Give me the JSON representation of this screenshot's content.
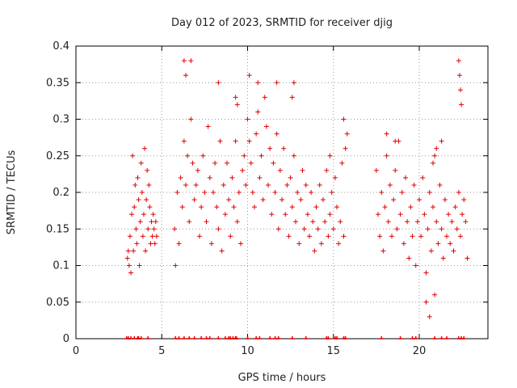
{
  "chart_data": {
    "type": "scatter",
    "title": "Day 012 of 2023, SRMTID for receiver djig",
    "xlabel": "GPS time / hours",
    "ylabel": "SRMTID / TECUs",
    "xlim": [
      0,
      24
    ],
    "ylim": [
      0,
      0.4
    ],
    "xticks": [
      0,
      5,
      10,
      15,
      20
    ],
    "yticks": [
      0,
      0.05,
      0.1,
      0.15,
      0.2,
      0.25,
      0.3,
      0.35,
      0.4
    ],
    "ytick_labels": [
      "0",
      "0.05",
      "0.1",
      "0.15",
      "0.2",
      "0.25",
      "0.3",
      "0.35",
      "0.4"
    ],
    "grid": true,
    "marker": "+",
    "series_color": "#e00000",
    "series": [
      {
        "x": [
          3.0,
          3.05,
          3.1,
          3.15,
          3.2,
          3.25,
          3.3,
          3.35,
          3.4,
          3.45,
          3.5,
          3.55,
          3.6,
          3.65,
          3.7,
          3.75,
          3.8,
          3.85,
          3.9,
          3.95,
          4.0,
          4.05,
          4.1,
          4.15,
          4.2,
          4.25,
          4.3,
          4.35,
          4.4,
          4.45,
          4.5,
          4.55,
          4.6,
          4.65,
          4.7,
          5.75,
          5.8,
          5.9,
          6.0,
          6.1,
          6.2,
          6.3,
          6.4,
          6.5,
          6.6,
          6.7,
          6.8,
          6.9,
          7.0,
          7.1,
          7.2,
          7.3,
          7.4,
          7.5,
          7.6,
          7.7,
          7.8,
          7.9,
          8.0,
          8.1,
          8.2,
          8.3,
          8.4,
          8.5,
          8.6,
          8.7,
          8.8,
          8.9,
          9.0,
          9.1,
          9.2,
          9.3,
          9.4,
          9.5,
          9.6,
          9.7,
          9.8,
          9.9,
          10.0,
          10.1,
          10.2,
          10.3,
          10.4,
          10.5,
          10.6,
          10.7,
          10.8,
          10.9,
          11.0,
          11.1,
          11.2,
          11.3,
          11.4,
          11.5,
          11.6,
          11.7,
          11.8,
          11.9,
          12.0,
          12.1,
          12.2,
          12.3,
          12.4,
          12.5,
          12.6,
          12.7,
          12.8,
          12.9,
          13.0,
          13.1,
          13.2,
          13.3,
          13.4,
          13.5,
          13.6,
          13.7,
          13.8,
          13.9,
          14.0,
          14.1,
          14.2,
          14.3,
          14.4,
          14.5,
          14.6,
          14.7,
          14.8,
          14.9,
          15.0,
          15.1,
          15.2,
          15.3,
          15.4,
          15.5,
          15.6,
          15.7,
          15.8,
          17.5,
          17.6,
          17.7,
          17.8,
          17.9,
          18.0,
          18.1,
          18.2,
          18.3,
          18.4,
          18.5,
          18.6,
          18.7,
          18.8,
          18.9,
          19.0,
          19.1,
          19.2,
          19.3,
          19.4,
          19.5,
          19.6,
          19.7,
          19.8,
          19.9,
          20.0,
          20.1,
          20.2,
          20.3,
          20.4,
          20.5,
          20.6,
          20.7,
          20.8,
          20.9,
          21.0,
          21.1,
          21.2,
          21.3,
          21.4,
          21.5,
          21.6,
          21.7,
          21.8,
          21.9,
          22.0,
          22.1,
          22.2,
          22.3,
          22.4,
          22.5,
          22.6,
          22.7,
          22.8,
          6.3,
          6.4,
          6.7,
          8.3,
          9.3,
          9.4,
          10.1,
          10.6,
          11.7,
          12.6,
          12.7,
          14.8,
          15.6,
          18.1,
          18.6,
          20.4,
          20.6,
          20.9,
          21.3,
          22.3,
          22.35,
          22.4,
          22.45,
          21.0,
          20.8
        ],
        "y": [
          0.11,
          0.12,
          0.1,
          0.14,
          0.09,
          0.17,
          0.25,
          0.12,
          0.18,
          0.21,
          0.15,
          0.13,
          0.22,
          0.19,
          0.1,
          0.16,
          0.24,
          0.2,
          0.14,
          0.17,
          0.26,
          0.12,
          0.19,
          0.23,
          0.15,
          0.21,
          0.18,
          0.13,
          0.16,
          0.14,
          0.17,
          0.15,
          0.13,
          0.16,
          0.14,
          0.15,
          0.1,
          0.2,
          0.13,
          0.22,
          0.18,
          0.27,
          0.21,
          0.25,
          0.16,
          0.3,
          0.24,
          0.19,
          0.21,
          0.23,
          0.14,
          0.18,
          0.25,
          0.2,
          0.16,
          0.29,
          0.22,
          0.13,
          0.2,
          0.24,
          0.18,
          0.15,
          0.27,
          0.12,
          0.21,
          0.17,
          0.24,
          0.19,
          0.14,
          0.22,
          0.18,
          0.27,
          0.16,
          0.2,
          0.13,
          0.23,
          0.25,
          0.21,
          0.3,
          0.27,
          0.24,
          0.2,
          0.18,
          0.28,
          0.31,
          0.22,
          0.25,
          0.19,
          0.33,
          0.29,
          0.21,
          0.26,
          0.17,
          0.24,
          0.2,
          0.28,
          0.15,
          0.23,
          0.19,
          0.26,
          0.17,
          0.21,
          0.14,
          0.22,
          0.18,
          0.25,
          0.16,
          0.2,
          0.13,
          0.19,
          0.23,
          0.15,
          0.21,
          0.17,
          0.14,
          0.2,
          0.16,
          0.12,
          0.18,
          0.15,
          0.21,
          0.13,
          0.19,
          0.16,
          0.23,
          0.14,
          0.17,
          0.2,
          0.15,
          0.22,
          0.18,
          0.13,
          0.16,
          0.24,
          0.14,
          0.26,
          0.28,
          0.23,
          0.17,
          0.14,
          0.2,
          0.12,
          0.18,
          0.25,
          0.16,
          0.21,
          0.14,
          0.19,
          0.23,
          0.15,
          0.27,
          0.17,
          0.2,
          0.13,
          0.22,
          0.16,
          0.11,
          0.18,
          0.14,
          0.21,
          0.1,
          0.16,
          0.19,
          0.14,
          0.22,
          0.17,
          0.09,
          0.15,
          0.2,
          0.12,
          0.18,
          0.25,
          0.16,
          0.13,
          0.21,
          0.15,
          0.11,
          0.19,
          0.14,
          0.17,
          0.13,
          0.16,
          0.12,
          0.18,
          0.15,
          0.2,
          0.14,
          0.17,
          0.19,
          0.16,
          0.11,
          0.38,
          0.36,
          0.38,
          0.35,
          0.33,
          0.32,
          0.36,
          0.35,
          0.35,
          0.33,
          0.35,
          0.25,
          0.3,
          0.28,
          0.27,
          0.05,
          0.03,
          0.06,
          0.27,
          0.38,
          0.36,
          0.34,
          0.32,
          0.26,
          0.24
        ]
      }
    ],
    "ticks_at_zero_x": [
      2.95,
      3.05,
      3.2,
      3.4,
      3.6,
      3.65,
      3.8,
      4.2,
      5.8,
      6.0,
      6.3,
      6.6,
      6.9,
      7.3,
      7.6,
      7.8,
      8.3,
      8.7,
      8.9,
      9.0,
      9.15,
      9.3,
      9.35,
      10.0,
      10.5,
      10.7,
      11.3,
      11.6,
      11.8,
      12.6,
      13.4,
      14.6,
      14.7,
      15.1,
      15.2,
      15.6,
      15.7,
      17.8,
      18.9,
      19.6,
      19.8,
      20.9,
      21.3,
      21.6,
      22.3,
      22.45,
      22.6
    ]
  }
}
